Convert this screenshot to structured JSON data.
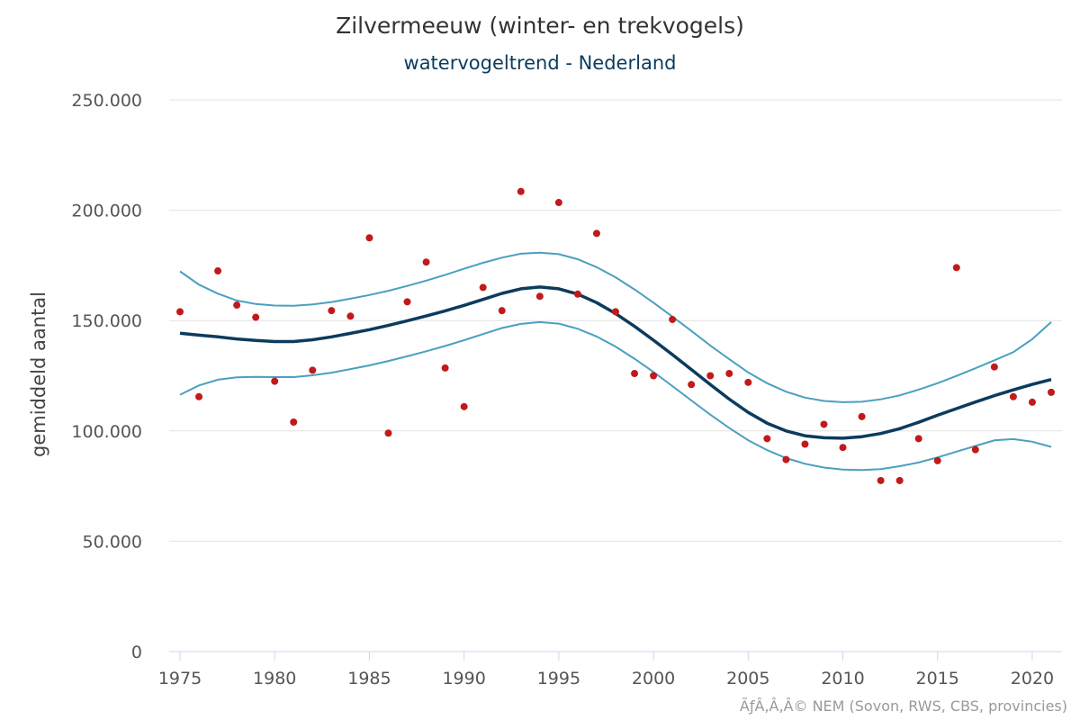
{
  "chart_data": {
    "type": "line",
    "title": "Zilvermeeuw (winter- en trekvogels)",
    "subtitle": "watervogeltrend - Nederland",
    "xlabel": "",
    "ylabel": "gemiddeld aantal",
    "xlim": [
      1975,
      2021
    ],
    "ylim": [
      0,
      250000
    ],
    "x_ticks": [
      1975,
      1980,
      1985,
      1990,
      1995,
      2000,
      2005,
      2010,
      2015,
      2020
    ],
    "x_tick_labels": [
      "1975",
      "1980",
      "1985",
      "1990",
      "1995",
      "2000",
      "2005",
      "2010",
      "2015",
      "2020"
    ],
    "y_ticks": [
      0,
      50000,
      100000,
      150000,
      200000,
      250000
    ],
    "y_tick_labels": [
      "0",
      "50.000",
      "100.000",
      "150.000",
      "200.000",
      "250.000"
    ],
    "grid": "horizontal",
    "legend": "none",
    "colors": {
      "trend": "#0c3b5d",
      "band": "#4aa0bf",
      "points": "#c21a1a",
      "grid": "#e2e2e2"
    },
    "x": [
      1975,
      1976,
      1977,
      1978,
      1979,
      1980,
      1981,
      1982,
      1983,
      1984,
      1985,
      1986,
      1987,
      1988,
      1989,
      1990,
      1991,
      1992,
      1993,
      1994,
      1995,
      1996,
      1997,
      1998,
      1999,
      2000,
      2001,
      2002,
      2003,
      2004,
      2005,
      2006,
      2007,
      2008,
      2009,
      2010,
      2011,
      2012,
      2013,
      2014,
      2015,
      2016,
      2017,
      2018,
      2019,
      2020,
      2021
    ],
    "series": [
      {
        "role": "trend",
        "values": [
          144300,
          143400,
          142600,
          141700,
          141000,
          140500,
          140500,
          141300,
          142600,
          144200,
          145900,
          147800,
          149900,
          152100,
          154400,
          156900,
          159600,
          162300,
          164400,
          165200,
          164400,
          162000,
          158100,
          153200,
          147400,
          141100,
          134600,
          127800,
          121000,
          114400,
          108400,
          103500,
          100000,
          97800,
          96900,
          96700,
          97400,
          98800,
          101000,
          103900,
          107100,
          110100,
          113100,
          116000,
          118600,
          121100,
          123300
        ]
      },
      {
        "role": "upper-band",
        "values": [
          172300,
          166300,
          162200,
          159100,
          157500,
          156800,
          156700,
          157300,
          158400,
          159900,
          161600,
          163500,
          165700,
          168100,
          170700,
          173500,
          176200,
          178500,
          180300,
          180800,
          180100,
          177800,
          174200,
          169600,
          164100,
          158100,
          151800,
          145300,
          138700,
          132500,
          126500,
          121600,
          117800,
          115100,
          113600,
          113000,
          113200,
          114300,
          116100,
          118700,
          121600,
          124900,
          128400,
          132000,
          135700,
          141600,
          149300
        ]
      },
      {
        "role": "lower-band",
        "values": [
          116400,
          120600,
          123200,
          124300,
          124500,
          124400,
          124400,
          125200,
          126400,
          128000,
          129700,
          131700,
          133800,
          136100,
          138500,
          141100,
          143900,
          146600,
          148500,
          149300,
          148600,
          146300,
          142800,
          138200,
          132700,
          126700,
          120300,
          113800,
          107400,
          101300,
          95800,
          91300,
          87700,
          85100,
          83400,
          82500,
          82300,
          82700,
          84000,
          85700,
          88000,
          90600,
          93200,
          95700,
          96300,
          95100,
          92800
        ]
      },
      {
        "role": "observed",
        "values": [
          154000,
          115500,
          172500,
          157000,
          151500,
          122500,
          104000,
          127500,
          154500,
          152000,
          187500,
          99000,
          158500,
          176500,
          128500,
          111000,
          165000,
          154500,
          208500,
          161000,
          203500,
          162000,
          189500,
          154000,
          126000,
          125000,
          150500,
          121000,
          125000,
          126000,
          122000,
          96500,
          87000,
          94000,
          103000,
          92500,
          106500,
          77500,
          77500,
          96500,
          86500,
          174000,
          91500,
          129000,
          115500,
          113000,
          117500
        ]
      }
    ]
  },
  "footer": {
    "credit": "ÃƒÂ‚Â‚Â© NEM (Sovon, RWS, CBS, provincies)"
  }
}
